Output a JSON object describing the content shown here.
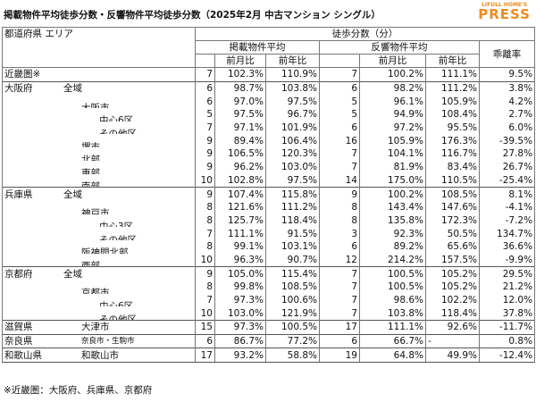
{
  "header": {
    "title": "掲載物件平均徒歩分数・反響物件平均徒歩分数（2025年2月 中古マンション シングル）",
    "logo_top": "LIFULL HOME'S",
    "logo_main": "PRESS"
  },
  "table": {
    "head": {
      "area": "都道府県 エリア",
      "walk": "徒歩分数（分）",
      "listing": "掲載物件平均",
      "response": "反響物件平均",
      "divergence": "乖離率",
      "mom1": "前月比",
      "yoy1": "前年比",
      "mom2": "前月比",
      "yoy2": "前年比"
    },
    "rows": [
      [
        "近畿圏※",
        null,
        "7",
        "102.3%",
        "110.9%",
        "7",
        "100.2%",
        "111.1%",
        "9.5%"
      ],
      [
        "大阪府",
        "全域",
        "6",
        "98.7%",
        "103.8%",
        "6",
        "98.2%",
        "111.2%",
        "3.8%"
      ],
      [
        null,
        "大阪市",
        "6",
        "97.0%",
        "97.5%",
        "5",
        "96.1%",
        "105.9%",
        "4.2%"
      ],
      [
        null,
        "中心6区",
        "5",
        "97.5%",
        "96.7%",
        "5",
        "94.9%",
        "108.4%",
        "2.7%"
      ],
      [
        null,
        "その他区",
        "7",
        "97.1%",
        "101.9%",
        "6",
        "97.2%",
        "95.5%",
        "6.0%"
      ],
      [
        null,
        "堺市",
        "9",
        "89.4%",
        "106.4%",
        "16",
        "105.9%",
        "176.3%",
        "-39.5%"
      ],
      [
        null,
        "北部",
        "9",
        "106.5%",
        "120.3%",
        "7",
        "104.1%",
        "116.7%",
        "27.8%"
      ],
      [
        null,
        "東部",
        "9",
        "96.2%",
        "103.0%",
        "7",
        "81.9%",
        "83.4%",
        "26.7%"
      ],
      [
        null,
        "南部",
        "10",
        "102.8%",
        "97.5%",
        "14",
        "175.0%",
        "110.5%",
        "-25.4%"
      ],
      [
        "兵庫県",
        "全域",
        "9",
        "107.4%",
        "115.8%",
        "9",
        "100.2%",
        "108.5%",
        "8.1%"
      ],
      [
        null,
        "神戸市",
        "8",
        "121.6%",
        "111.2%",
        "8",
        "143.4%",
        "147.6%",
        "-4.1%"
      ],
      [
        null,
        "中心3区",
        "8",
        "125.7%",
        "118.4%",
        "8",
        "135.8%",
        "172.3%",
        "-7.2%"
      ],
      [
        null,
        "その他区",
        "7",
        "111.1%",
        "91.5%",
        "3",
        "92.3%",
        "50.5%",
        "134.7%"
      ],
      [
        null,
        "阪神間北部",
        "8",
        "99.1%",
        "103.1%",
        "6",
        "89.2%",
        "65.6%",
        "36.6%"
      ],
      [
        null,
        "西部",
        "10",
        "96.3%",
        "90.7%",
        "12",
        "214.2%",
        "157.5%",
        "-9.9%"
      ],
      [
        "京都府",
        "全域",
        "9",
        "105.0%",
        "115.4%",
        "7",
        "100.5%",
        "105.2%",
        "29.5%"
      ],
      [
        null,
        "京都市",
        "8",
        "99.8%",
        "108.5%",
        "7",
        "100.5%",
        "105.2%",
        "21.2%"
      ],
      [
        null,
        "中心6区",
        "7",
        "97.3%",
        "100.6%",
        "7",
        "98.6%",
        "102.2%",
        "12.0%"
      ],
      [
        null,
        "その他区",
        "10",
        "103.0%",
        "121.9%",
        "7",
        "103.8%",
        "118.4%",
        "37.8%"
      ],
      [
        "滋賀県",
        "大津市",
        "15",
        "97.3%",
        "100.5%",
        "17",
        "111.1%",
        "92.6%",
        "-11.7%"
      ],
      [
        "奈良県",
        "奈良市・生駒市",
        "6",
        "86.7%",
        "77.2%",
        "6",
        "66.7%",
        "-",
        "0.8%"
      ],
      [
        "和歌山県",
        "和歌山市",
        "17",
        "93.2%",
        "58.8%",
        "19",
        "64.8%",
        "49.9%",
        "-12.4%"
      ]
    ]
  },
  "footnote": "※近畿圏：大阪府、兵庫県、京都府"
}
